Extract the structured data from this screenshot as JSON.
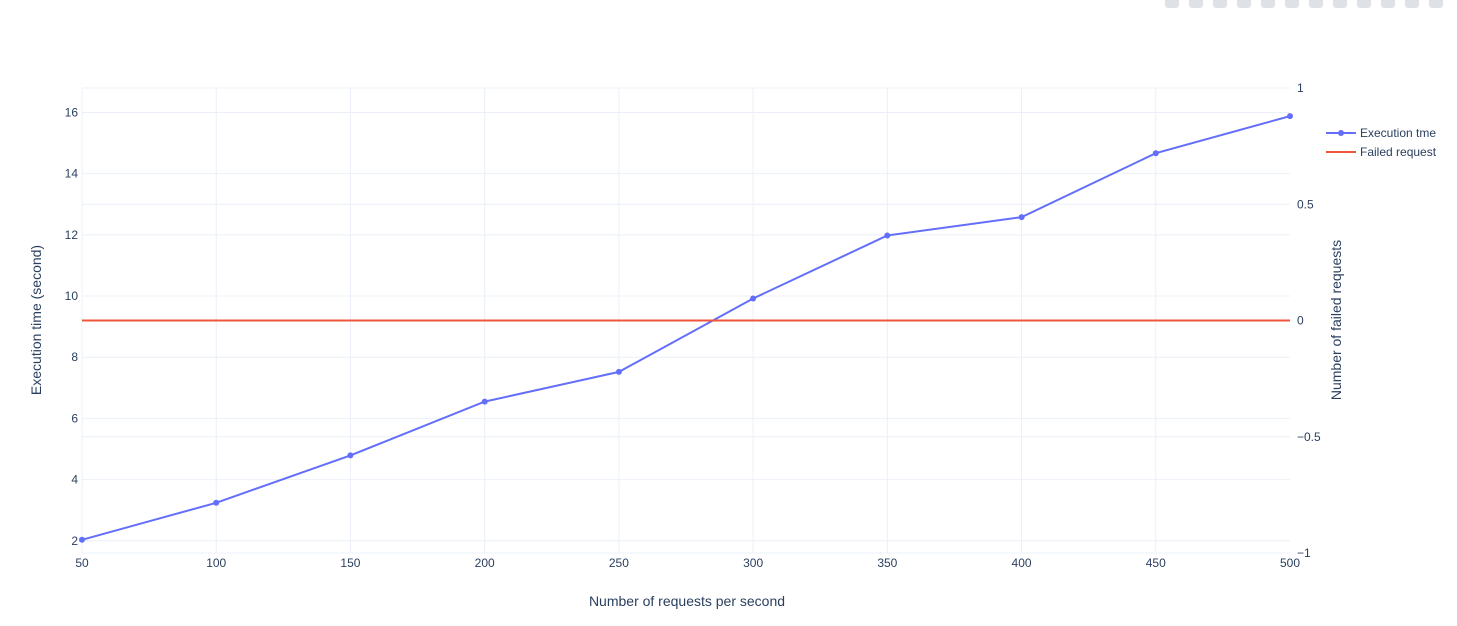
{
  "chart_data": {
    "type": "line",
    "title": "",
    "xlabel": "Number of requests per second",
    "ylabel": "Execution time (second)",
    "y2label": "Number of failed requests",
    "x": [
      50,
      100,
      150,
      200,
      250,
      300,
      350,
      400,
      450,
      500
    ],
    "xlim": [
      50,
      500
    ],
    "ylim": [
      1.6,
      16.8
    ],
    "y2lim": [
      -1,
      1
    ],
    "x_ticks": [
      "50",
      "100",
      "150",
      "200",
      "250",
      "300",
      "350",
      "400",
      "450",
      "500"
    ],
    "y_ticks": [
      "2",
      "4",
      "6",
      "8",
      "10",
      "12",
      "14",
      "16"
    ],
    "y2_ticks": [
      "1",
      "0.5",
      "0",
      "−0.5",
      "−1"
    ],
    "grid": true,
    "legend_position": "top-right",
    "series": [
      {
        "name": "Execution tme",
        "axis": "y",
        "mode": "lines+markers",
        "color": "#636efa",
        "values": [
          2.03,
          3.24,
          4.79,
          6.55,
          7.52,
          9.92,
          11.98,
          12.58,
          14.67,
          15.88
        ]
      },
      {
        "name": "Failed request",
        "axis": "y2",
        "mode": "lines",
        "color": "#ef553b",
        "values": [
          0,
          0,
          0,
          0,
          0,
          0,
          0,
          0,
          0,
          0
        ]
      }
    ]
  },
  "colors": {
    "grid": "#ebf0f8",
    "tick_text": "#2a3f5f",
    "series_1": "#636efa",
    "series_2": "#ef553b"
  },
  "toolbar": {
    "icons": [
      "zoom-icon",
      "pan-icon",
      "box-select-icon",
      "lasso-icon",
      "zoom-in-icon",
      "zoom-out-icon",
      "autoscale-icon",
      "reset-axes-icon",
      "spike-lines-icon",
      "hover-closest-icon",
      "hover-compare-icon",
      "plotly-logo-icon"
    ]
  }
}
